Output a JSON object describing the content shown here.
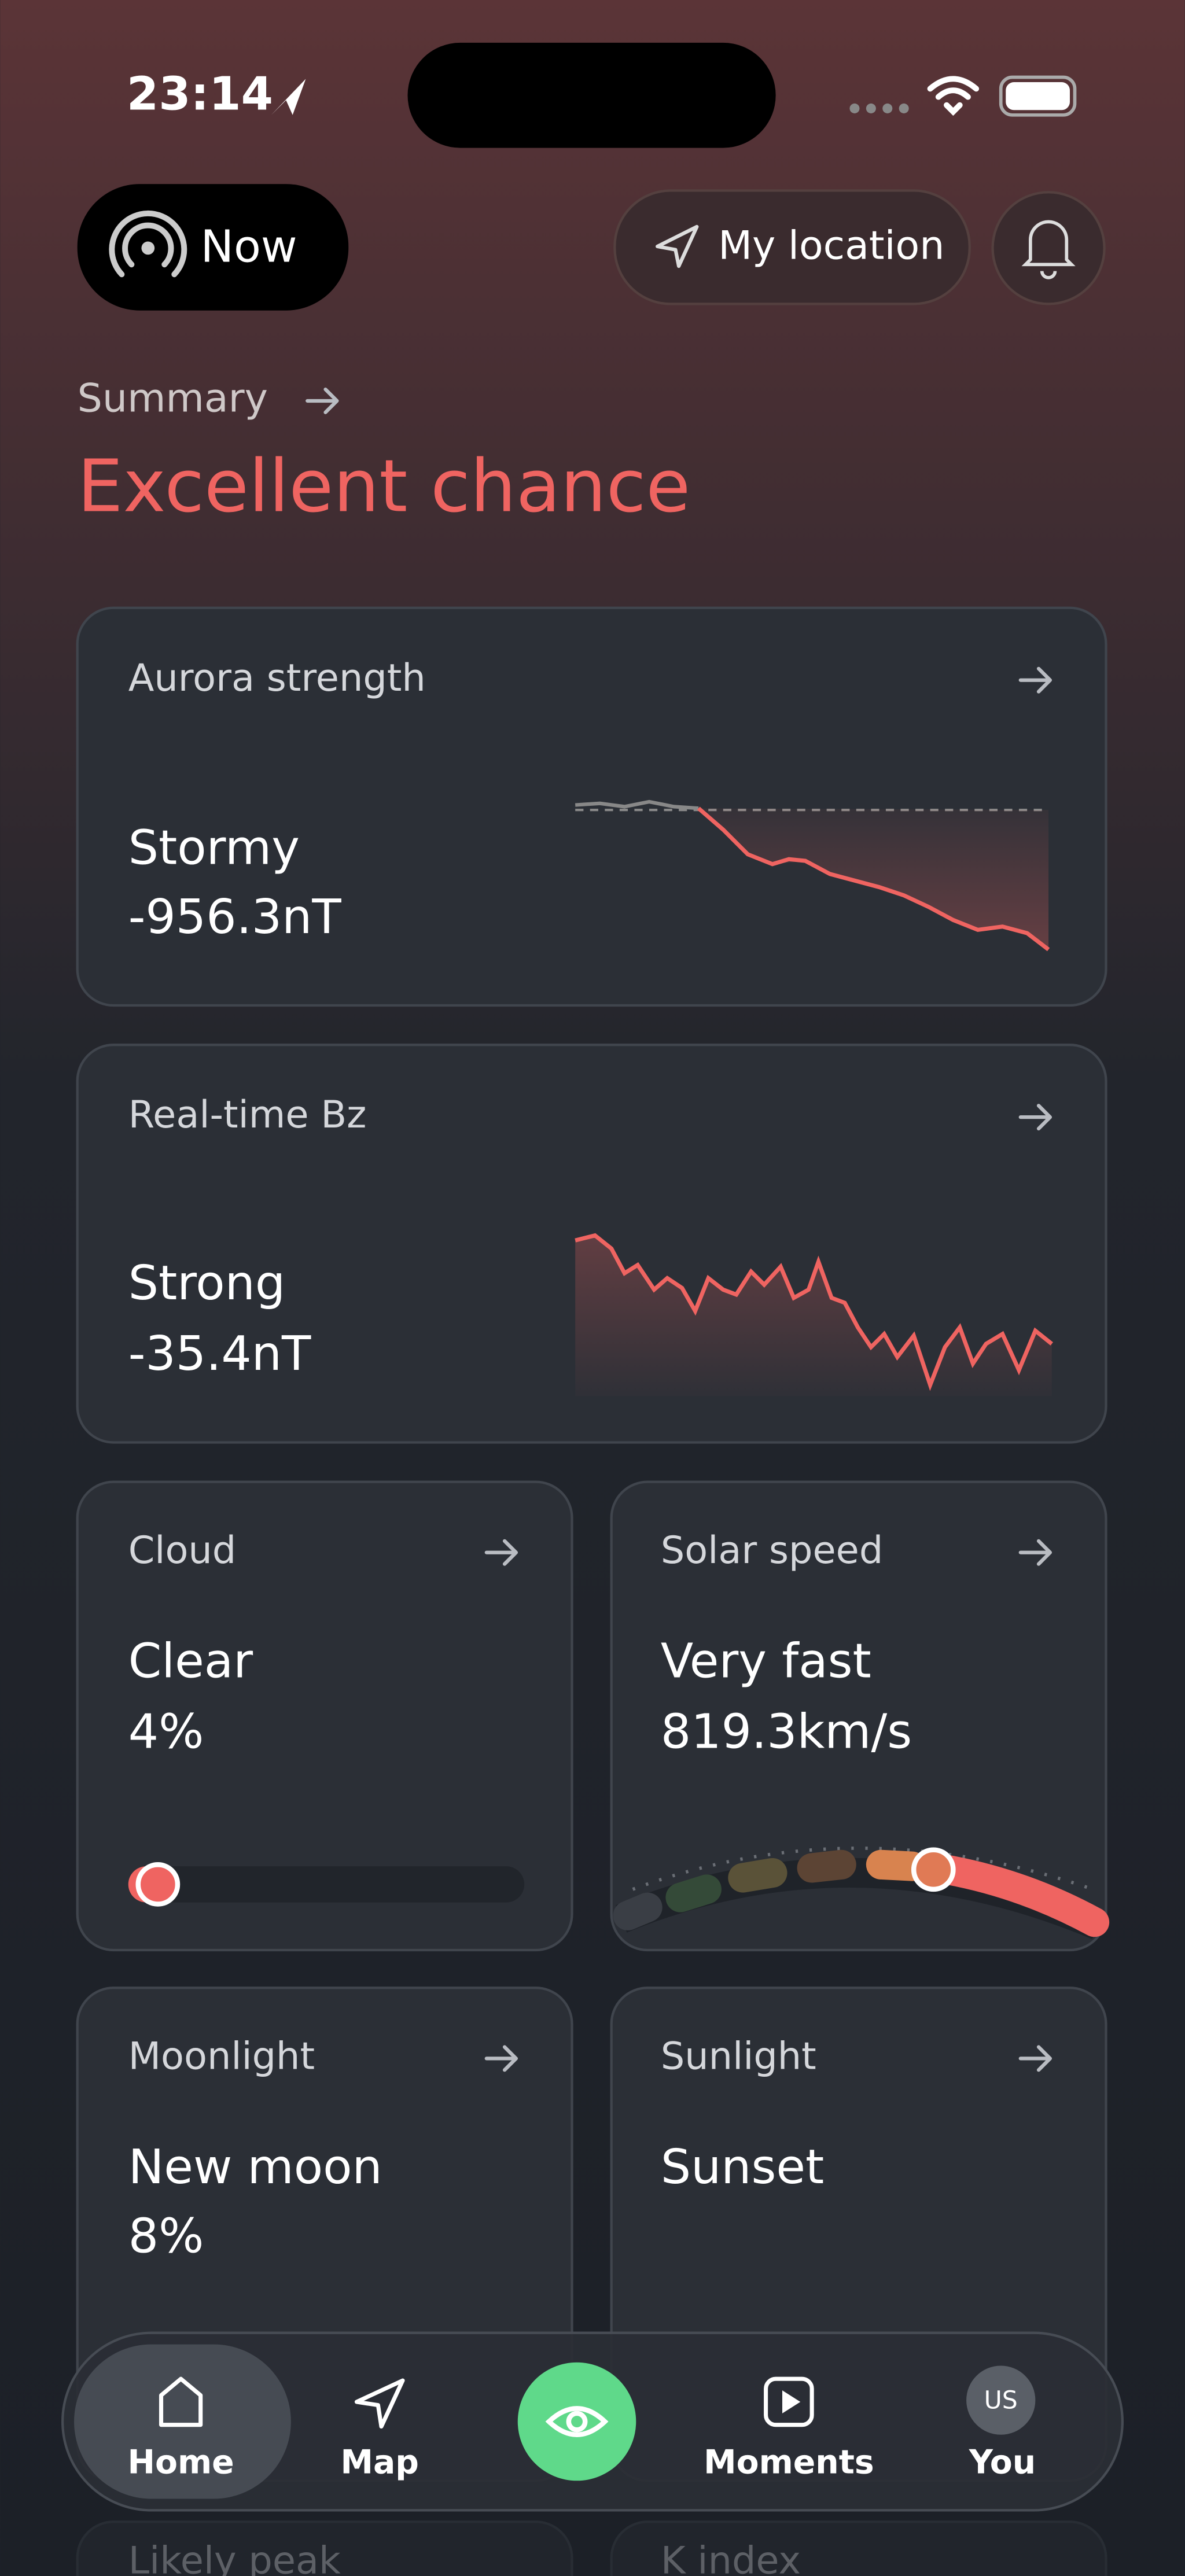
{
  "status_bar": {
    "time": "23:14"
  },
  "header": {
    "now_button": "Now",
    "location_button": "My location"
  },
  "summary": {
    "label": "Summary",
    "headline": "Excellent chance"
  },
  "cards": [
    {
      "title": "Aurora strength",
      "status": "Stormy",
      "value": "-956.3nT"
    },
    {
      "title": "Real-time Bz",
      "status": "Strong",
      "value": "-35.4nT"
    },
    {
      "title": "Cloud",
      "status": "Clear",
      "value": "4%"
    },
    {
      "title": "Solar speed",
      "status": "Very fast",
      "value": "819.3km/s"
    },
    {
      "title": "Moonlight",
      "status": "New moon",
      "value": "8%"
    },
    {
      "title": "Sunlight",
      "status": "Sunset"
    },
    {
      "title": "Likely peak"
    },
    {
      "title": "K index"
    }
  ],
  "tab_bar": {
    "home": "Home",
    "map": "Map",
    "moments": "Moments",
    "avatar": "US",
    "you": "You"
  }
}
